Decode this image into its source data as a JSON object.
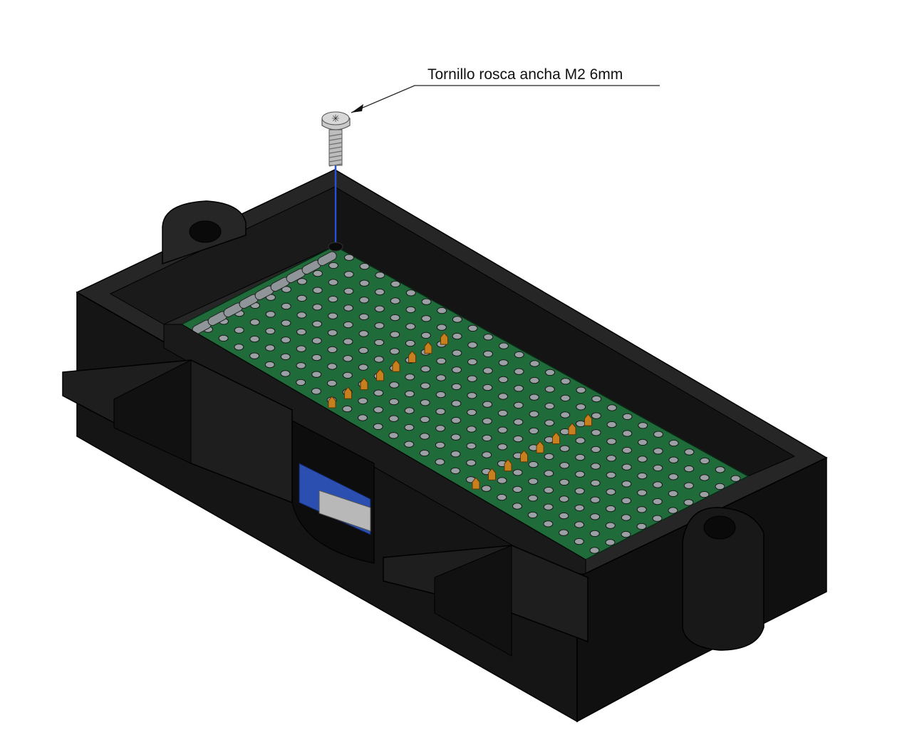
{
  "annotation": {
    "label": "Tornillo rosca ancha M2 6mm",
    "target": "screw"
  },
  "colors": {
    "enclosure": "#1c1c1c",
    "enclosure_edge": "#000000",
    "pcb": "#1f6b3a",
    "pad": "#9aa0a3",
    "pin_header": "#c8801e",
    "screw": "#b9b9b9",
    "axis_line": "#2a4fd0",
    "usb_board": "#2a4fb0"
  },
  "parts": {
    "enclosure": "enclosure-body",
    "pcb": "perfboard",
    "screw": "mounting-screw",
    "connector": "micro-usb-connector"
  }
}
